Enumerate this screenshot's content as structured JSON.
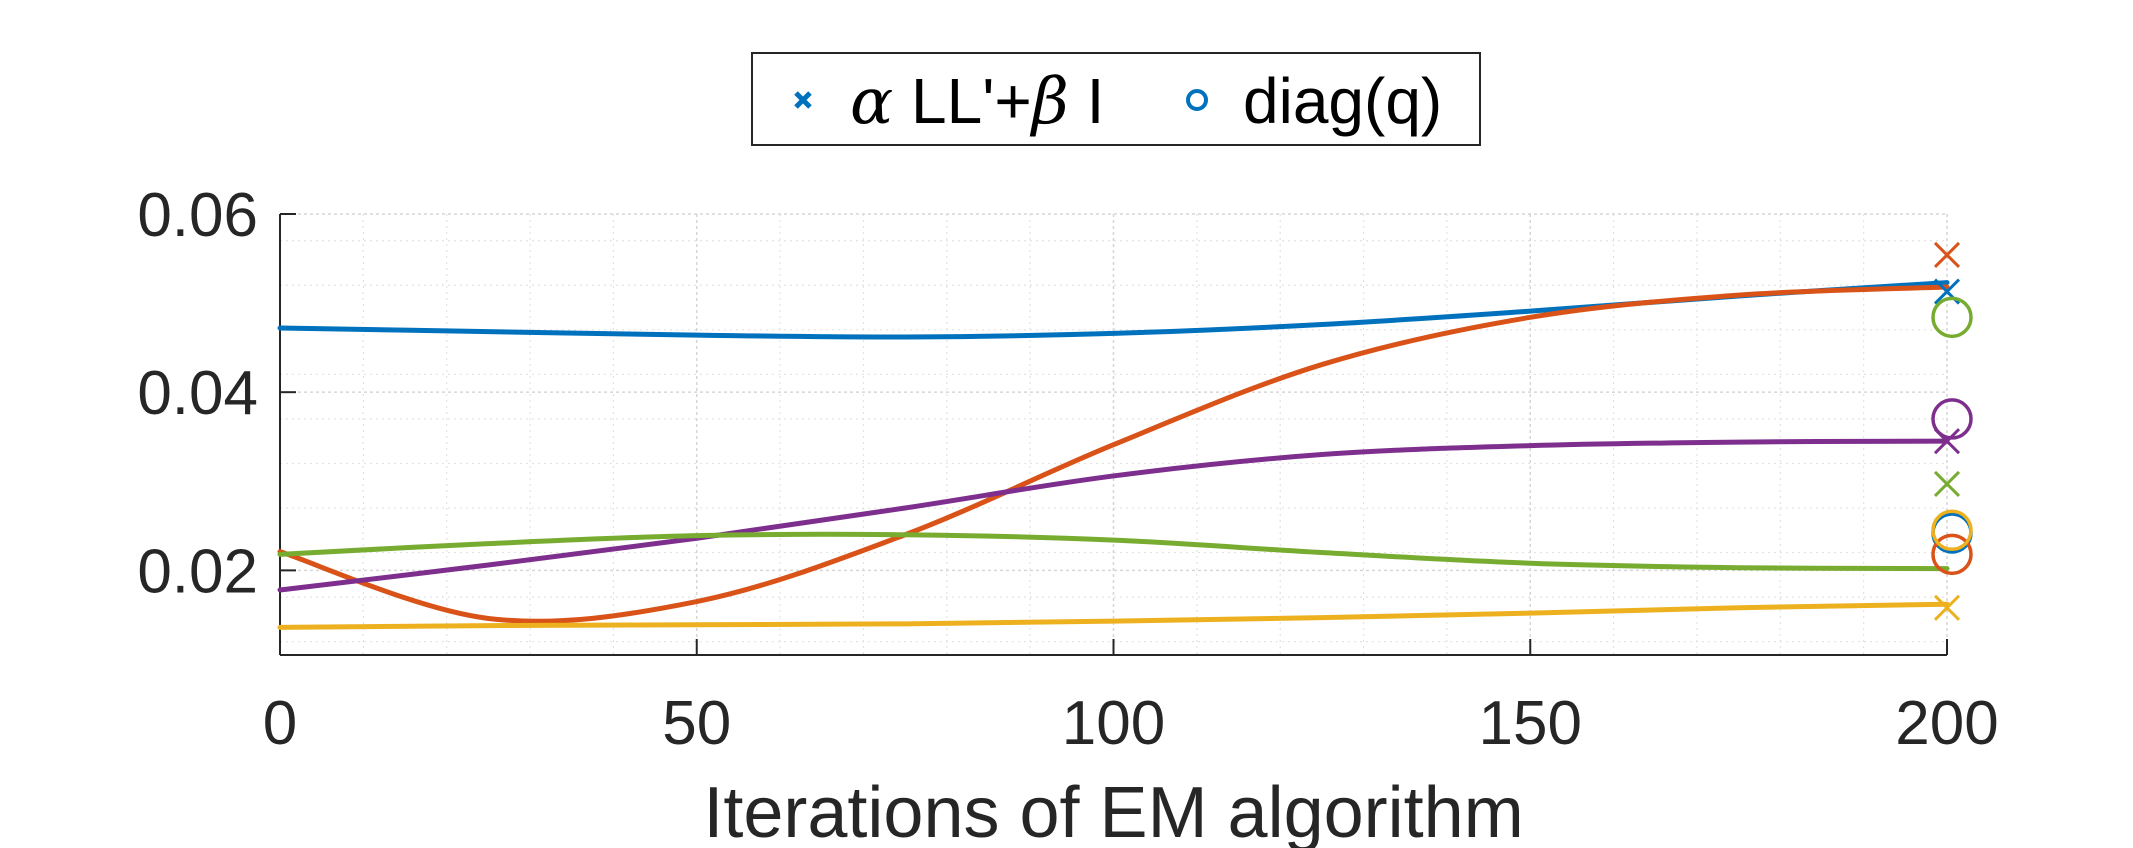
{
  "chart_data": {
    "type": "line",
    "title": "",
    "xlabel": "Iterations of EM algorithm",
    "ylabel": "",
    "xlim": [
      0,
      200
    ],
    "ylim": [
      0.0105,
      0.06
    ],
    "xticks": [
      0,
      50,
      100,
      150,
      200
    ],
    "xtick_labels": [
      "0",
      "50",
      "100",
      "150",
      "200"
    ],
    "yticks": [
      0.02,
      0.04,
      0.06
    ],
    "ytick_labels": [
      "0.02",
      "0.04",
      "0.06"
    ],
    "grid": true,
    "minor_grid": true,
    "legend": {
      "placement": "top-center, outside",
      "entries": [
        {
          "marker": "x",
          "color": "#0072BD",
          "greek1": "α",
          "text1": " LL'+",
          "greek2": "β",
          "text2": " I"
        },
        {
          "marker": "o",
          "color": "#0072BD",
          "text": "diag(q)"
        }
      ]
    },
    "x": [
      0,
      25,
      50,
      75,
      100,
      125,
      150,
      175,
      200
    ],
    "series": [
      {
        "name": "blue",
        "color": "#0072BD",
        "values": [
          0.0472,
          0.0468,
          0.0464,
          0.0462,
          0.0466,
          0.0476,
          0.0491,
          0.0508,
          0.0523
        ],
        "x_marker": 0.0513,
        "o_marker": 0.0242
      },
      {
        "name": "orange",
        "color": "#D95319",
        "values": [
          0.0221,
          0.0146,
          0.0165,
          0.024,
          0.0341,
          0.0431,
          0.0484,
          0.0509,
          0.0518
        ],
        "x_marker": 0.0554,
        "o_marker": 0.0218
      },
      {
        "name": "yellow",
        "color": "#EDB120",
        "values": [
          0.0136,
          0.0138,
          0.0139,
          0.014,
          0.0143,
          0.0147,
          0.0152,
          0.0158,
          0.0162
        ],
        "x_marker": 0.0158,
        "o_marker": 0.0245
      },
      {
        "name": "purple",
        "color": "#7E2F8E",
        "values": [
          0.0178,
          0.0206,
          0.0236,
          0.027,
          0.0306,
          0.033,
          0.034,
          0.0344,
          0.0345
        ],
        "x_marker": 0.0345,
        "o_marker": 0.037
      },
      {
        "name": "green",
        "color": "#77AC30",
        "values": [
          0.0218,
          0.023,
          0.0239,
          0.024,
          0.0234,
          0.022,
          0.0208,
          0.0203,
          0.0202
        ],
        "x_marker": 0.0297,
        "o_marker": 0.0484
      }
    ]
  }
}
